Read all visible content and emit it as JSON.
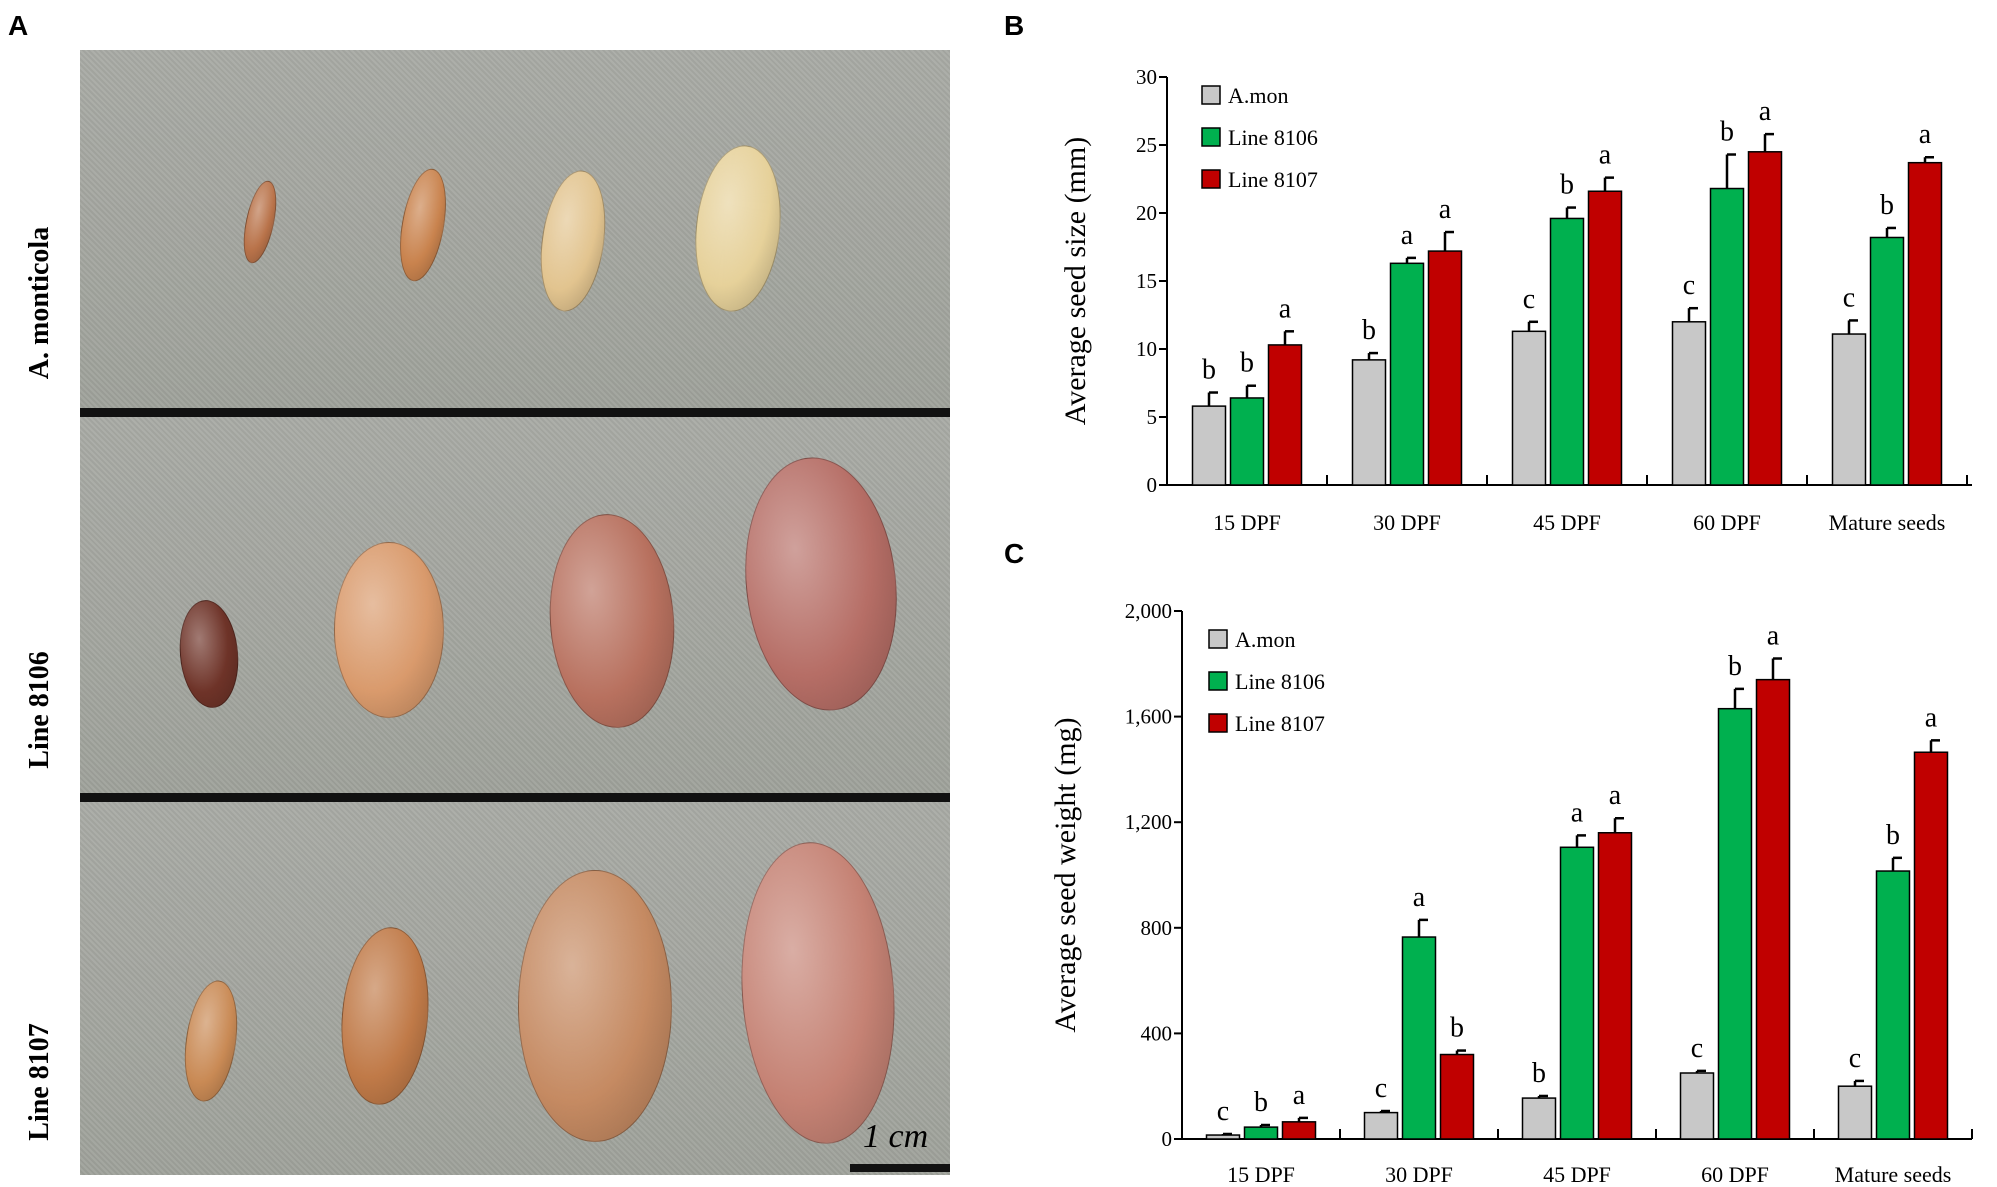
{
  "panels": {
    "a": "A",
    "b": "B",
    "c": "C"
  },
  "photo": {
    "rows": [
      {
        "label": "A. monticola",
        "seed_colors": [
          "#b9734a",
          "#c9834e",
          "#e2c48f",
          "#e6d19a"
        ]
      },
      {
        "label": "Line 8106",
        "seed_colors": [
          "#6e3328",
          "#d99a6c",
          "#b8715f",
          "#b66e66"
        ]
      },
      {
        "label": "Line 8107",
        "seed_colors": [
          "#c98a55",
          "#c07a48",
          "#c58a62",
          "#c58274"
        ]
      }
    ],
    "scale_label": "1 cm"
  },
  "colors": {
    "amon": "#c8c8c8",
    "l8106": "#00b04f",
    "l8107": "#c00000"
  },
  "chart_data": [
    {
      "type": "bar",
      "panel": "B",
      "title": "",
      "xlabel": "",
      "ylabel": "Average seed size (mm)",
      "ylim": [
        0,
        30
      ],
      "yticks": [
        0,
        5,
        10,
        15,
        20,
        25,
        30
      ],
      "ytick_labels": [
        "0",
        "5",
        "10",
        "15",
        "20",
        "25",
        "30"
      ],
      "grid": false,
      "legend_position": "top-left",
      "categories": [
        "15 DPF",
        "30 DPF",
        "45 DPF",
        "60 DPF",
        "Mature seeds"
      ],
      "series": [
        {
          "name": "A.mon",
          "values": [
            5.8,
            9.2,
            11.3,
            12.0,
            11.1
          ],
          "errors": [
            1.0,
            0.5,
            0.7,
            1.0,
            1.0
          ],
          "letters": [
            "b",
            "b",
            "c",
            "c",
            "c"
          ]
        },
        {
          "name": "Line 8106",
          "values": [
            6.4,
            16.3,
            19.6,
            21.8,
            18.2
          ],
          "errors": [
            0.9,
            0.4,
            0.8,
            2.5,
            0.7
          ],
          "letters": [
            "b",
            "a",
            "b",
            "b",
            "b"
          ]
        },
        {
          "name": "Line 8107",
          "values": [
            10.3,
            17.2,
            21.6,
            24.5,
            23.7
          ],
          "errors": [
            1.0,
            1.4,
            1.0,
            1.3,
            0.4
          ],
          "letters": [
            "a",
            "a",
            "a",
            "a",
            "a"
          ]
        }
      ]
    },
    {
      "type": "bar",
      "panel": "C",
      "title": "",
      "xlabel": "",
      "ylabel": "Average seed weight (mg)",
      "ylim": [
        0,
        2000
      ],
      "yticks": [
        0,
        400,
        800,
        1200,
        1600,
        2000
      ],
      "ytick_labels": [
        "0",
        "400",
        "800",
        "1,200",
        "1,600",
        "2,000"
      ],
      "grid": false,
      "legend_position": "top-left",
      "categories": [
        "15 DPF",
        "30 DPF",
        "45 DPF",
        "60 DPF",
        "Mature seeds"
      ],
      "series": [
        {
          "name": "A.mon",
          "values": [
            15,
            100,
            155,
            250,
            200
          ],
          "errors": [
            4,
            6,
            8,
            8,
            20
          ],
          "letters": [
            "c",
            "c",
            "b",
            "c",
            "c"
          ]
        },
        {
          "name": "Line 8106",
          "values": [
            45,
            765,
            1105,
            1630,
            1015
          ],
          "errors": [
            8,
            65,
            45,
            75,
            50
          ],
          "letters": [
            "b",
            "a",
            "a",
            "b",
            "b"
          ]
        },
        {
          "name": "Line 8107",
          "values": [
            65,
            320,
            1160,
            1740,
            1465
          ],
          "errors": [
            15,
            15,
            55,
            80,
            45
          ],
          "letters": [
            "a",
            "b",
            "a",
            "a",
            "a"
          ]
        }
      ]
    }
  ]
}
